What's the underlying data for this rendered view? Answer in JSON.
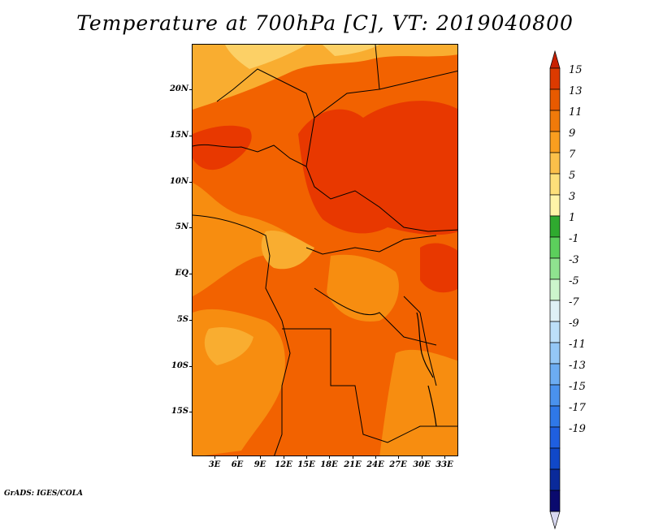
{
  "title": "Temperature at 700hPa [C], VT: 2019040800",
  "credit": "GrADS: IGES/COLA",
  "map": {
    "lat_ticks": [
      "20N",
      "15N",
      "10N",
      "5N",
      "EQ",
      "5S",
      "10S",
      "15S"
    ],
    "lon_ticks": [
      "3E",
      "6E",
      "9E",
      "12E",
      "15E",
      "18E",
      "21E",
      "24E",
      "27E",
      "30E",
      "33E"
    ]
  },
  "colorbar": {
    "labels": [
      "15",
      "13",
      "11",
      "9",
      "7",
      "5",
      "3",
      "1",
      "-1",
      "-3",
      "-5",
      "-7",
      "-9",
      "-11",
      "-13",
      "-15",
      "-17",
      "-19"
    ],
    "colors": [
      "#d8d8f0",
      "#0a0a6e",
      "#0a2a9a",
      "#1048c8",
      "#1f5fe0",
      "#2f78e8",
      "#4a92ee",
      "#6cacf2",
      "#94c7f6",
      "#bcdff9",
      "#dff0f6",
      "#ccf5cc",
      "#8fe38f",
      "#5ccf5c",
      "#2faa2f",
      "#fff4a8",
      "#fde07a",
      "#fbc04a",
      "#f99e1f",
      "#f07a0a",
      "#e85a00",
      "#dc3a00",
      "#c82000"
    ]
  },
  "legend_colors": {
    "warm_15_13": "#e83800",
    "warm_13_11": "#f26200",
    "warm_11_9": "#f78d10",
    "warm_9_7": "#f9ad30",
    "warm_7_5": "#fcd066"
  }
}
